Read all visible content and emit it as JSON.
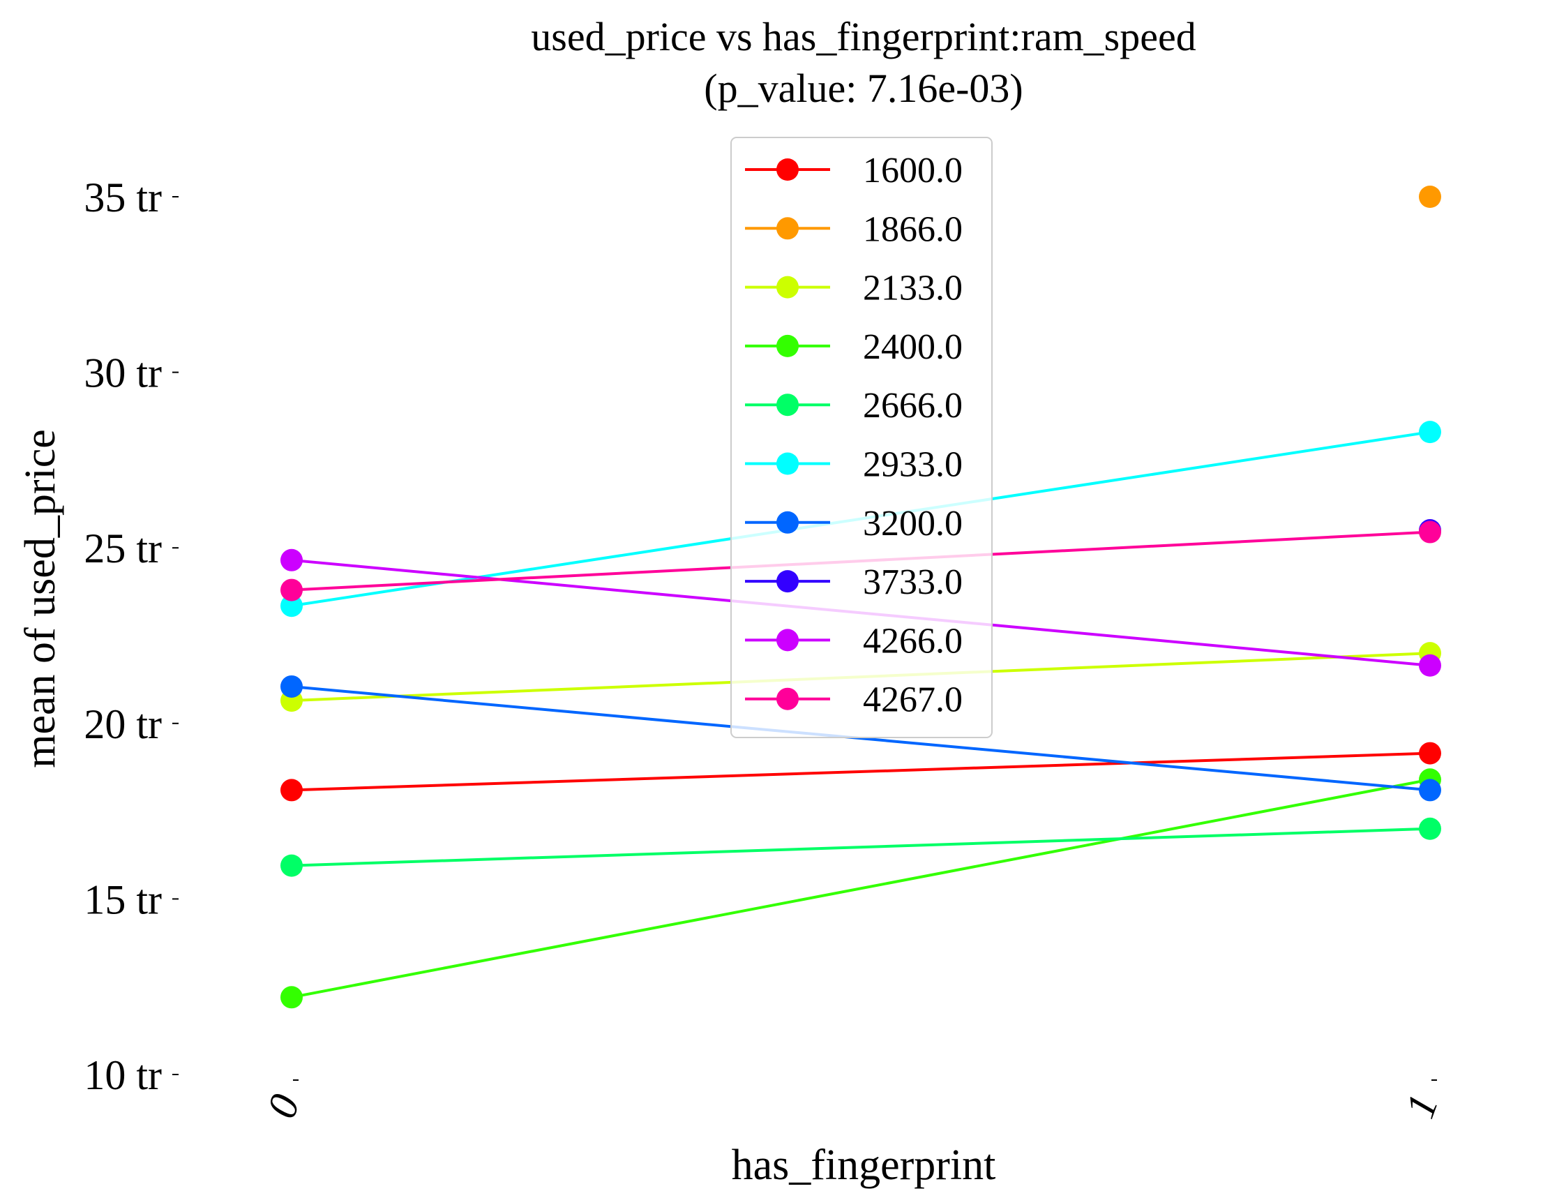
{
  "chart_data": {
    "type": "line",
    "title": "used_price vs has_fingerprint:ram_speed",
    "subtitle": "(p_value: 7.16e-03)",
    "xlabel": "has_fingerprint",
    "ylabel": "mean of used_price",
    "categories": [
      "0",
      "1"
    ],
    "y_ticks": [
      10,
      15,
      20,
      25,
      30,
      35
    ],
    "y_tick_labels": [
      "10 tr",
      "15 tr",
      "20 tr",
      "25 tr",
      "30 tr",
      "35 tr"
    ],
    "ylim": [
      10,
      35
    ],
    "grid": false,
    "legend_position": "top-center",
    "series": [
      {
        "name": "1600.0",
        "color": "#ff0000",
        "values": [
          18.1,
          19.15
        ]
      },
      {
        "name": "1866.0",
        "color": "#ff9900",
        "values": [
          null,
          35.0
        ]
      },
      {
        "name": "2133.0",
        "color": "#ccff00",
        "values": [
          20.65,
          22.0
        ]
      },
      {
        "name": "2400.0",
        "color": "#33ff00",
        "values": [
          12.2,
          18.4
        ]
      },
      {
        "name": "2666.0",
        "color": "#00ff66",
        "values": [
          15.95,
          17.0
        ]
      },
      {
        "name": "2933.0",
        "color": "#00ffff",
        "values": [
          23.35,
          28.3
        ]
      },
      {
        "name": "3200.0",
        "color": "#0066ff",
        "values": [
          21.05,
          18.1
        ]
      },
      {
        "name": "3733.0",
        "color": "#3300ff",
        "values": [
          null,
          25.5
        ]
      },
      {
        "name": "4266.0",
        "color": "#cc00ff",
        "values": [
          24.65,
          21.65
        ]
      },
      {
        "name": "4267.0",
        "color": "#ff0099",
        "values": [
          23.8,
          25.45
        ]
      }
    ]
  }
}
